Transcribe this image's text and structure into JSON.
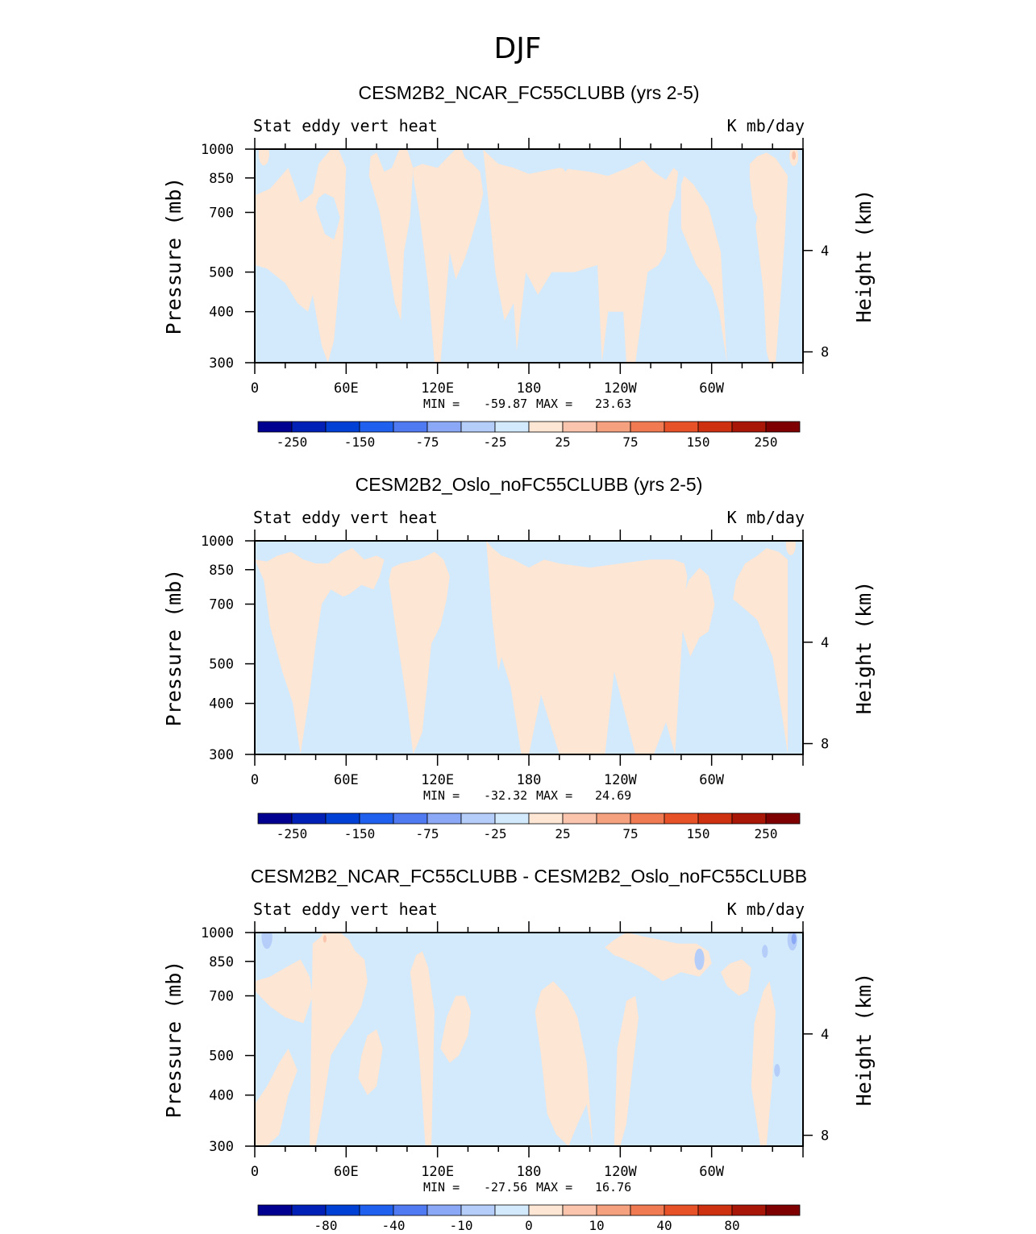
{
  "figure": {
    "title": "DJF"
  },
  "chart_data": [
    {
      "type": "heatmap",
      "title": "CESM2B2_NCAR_FC55CLUBB (yrs 2-5)",
      "left_label": "Stat eddy vert heat",
      "right_label": "K mb/day",
      "ylabel": "Pressure (mb)",
      "ylabel_right": "Height (km)",
      "x_ticks": [
        "0",
        "60E",
        "120E",
        "180",
        "120W",
        "60W"
      ],
      "y_ticks": [
        "300",
        "400",
        "500",
        "700",
        "850",
        "1000"
      ],
      "y_right_ticks": [
        "8",
        "4"
      ],
      "stats": {
        "min_label": "MIN =",
        "min": "-59.87",
        "max_label": "MAX =",
        "max": "23.63"
      },
      "colorbar_labels": [
        "-250",
        "-150",
        "-75",
        "-25",
        "25",
        "75",
        "150",
        "250"
      ],
      "fields": [
        {
          "name": "positive region 1",
          "sign": "positive",
          "lon": [
            0,
            8,
            20,
            28,
            35,
            38,
            44,
            48,
            52,
            58,
            60,
            55,
            50,
            42,
            38,
            30,
            22,
            10,
            0
          ],
          "p": [
            520,
            510,
            470,
            420,
            400,
            440,
            330,
            300,
            340,
            600,
            900,
            1000,
            1000,
            920,
            780,
            740,
            900,
            800,
            770
          ]
        },
        {
          "name": "positive region 2",
          "sign": "positive",
          "lon": [
            75,
            82,
            88,
            92,
            96,
            98,
            102,
            104,
            100,
            95,
            90,
            85,
            80,
            76
          ],
          "p": [
            860,
            700,
            520,
            420,
            380,
            560,
            680,
            900,
            1000,
            1000,
            900,
            880,
            980,
            960
          ]
        },
        {
          "name": "positive region 3",
          "sign": "positive",
          "lon": [
            104,
            108,
            114,
            118,
            122,
            128,
            132,
            138,
            142,
            148,
            150,
            148,
            143,
            138,
            136,
            132,
            126,
            120,
            110,
            104
          ],
          "p": [
            860,
            700,
            460,
            300,
            300,
            560,
            480,
            540,
            600,
            720,
            780,
            880,
            920,
            950,
            1000,
            1000,
            950,
            900,
            920,
            900
          ]
        },
        {
          "name": "positive region 4",
          "sign": "positive",
          "lon": [
            150,
            158,
            164,
            170,
            172,
            178,
            186,
            195,
            210,
            225,
            228,
            232,
            242,
            244,
            250,
            258,
            265,
            270,
            272,
            276,
            278,
            275,
            270,
            262,
            255,
            245,
            232,
            220,
            200,
            180,
            170,
            160,
            152,
            150
          ],
          "p": [
            1000,
            500,
            380,
            420,
            320,
            500,
            440,
            500,
            500,
            520,
            300,
            400,
            400,
            300,
            300,
            500,
            520,
            560,
            700,
            760,
            880,
            900,
            840,
            880,
            940,
            900,
            860,
            880,
            900,
            870,
            900,
            920,
            980,
            1000
          ]
        },
        {
          "name": "positive region 5",
          "sign": "positive",
          "lon": [
            280,
            290,
            300,
            305,
            310,
            306,
            298,
            288,
            282,
            280
          ],
          "p": [
            640,
            520,
            460,
            400,
            300,
            560,
            720,
            820,
            860,
            820
          ]
        },
        {
          "name": "positive region 6",
          "sign": "positive",
          "lon": [
            325,
            330,
            334,
            336,
            338,
            342,
            345,
            348,
            350,
            342,
            336,
            330,
            325
          ],
          "p": [
            850,
            600,
            450,
            320,
            300,
            300,
            420,
            600,
            860,
            950,
            980,
            960,
            920
          ]
        },
        {
          "name": "blue pocket 1",
          "sign": "negative",
          "lon": [
            40,
            46,
            52,
            56,
            52,
            46,
            42
          ],
          "p": [
            720,
            620,
            600,
            680,
            760,
            780,
            760
          ]
        },
        {
          "name": "blue pocket 2",
          "sign": "negative",
          "lon": [
            322,
            327,
            330,
            326,
            322
          ],
          "p": [
            640,
            600,
            680,
            740,
            720
          ]
        },
        {
          "name": "blue pocket 3",
          "sign": "negative",
          "lon": [
            200,
            204,
            208,
            204,
            200
          ],
          "p": [
            920,
            880,
            920,
            960,
            950
          ]
        }
      ],
      "spots": [
        {
          "lon": 354,
          "p": 960,
          "dlon": 1.8,
          "level": 1
        },
        {
          "lon": 354,
          "p": 965,
          "dlon": 0.8,
          "level": 2
        },
        {
          "lon": 6,
          "p": 975,
          "dlon": 2.2,
          "level": 1
        }
      ]
    },
    {
      "type": "heatmap",
      "title": "CESM2B2_Oslo_noFC55CLUBB (yrs 2-5)",
      "left_label": "Stat eddy vert heat",
      "right_label": "K mb/day",
      "ylabel": "Pressure (mb)",
      "ylabel_right": "Height (km)",
      "x_ticks": [
        "0",
        "60E",
        "120E",
        "180",
        "120W",
        "60W"
      ],
      "y_ticks": [
        "300",
        "400",
        "500",
        "700",
        "850",
        "1000"
      ],
      "y_right_ticks": [
        "8",
        "4"
      ],
      "stats": {
        "min_label": "MIN =",
        "min": "-32.32",
        "max_label": "MAX =",
        "max": "24.69"
      },
      "colorbar_labels": [
        "-250",
        "-150",
        "-75",
        "-25",
        "25",
        "75",
        "150",
        "250"
      ],
      "fields": [
        {
          "name": "positive region 1",
          "sign": "positive",
          "lon": [
            0,
            6,
            10,
            18,
            25,
            30,
            36,
            40,
            44,
            50,
            58,
            62,
            70,
            78,
            82,
            85,
            80,
            72,
            64,
            56,
            48,
            40,
            32,
            24,
            15,
            8,
            0
          ],
          "p": [
            900,
            800,
            620,
            480,
            400,
            300,
            420,
            560,
            700,
            760,
            730,
            740,
            780,
            760,
            820,
            900,
            920,
            900,
            960,
            930,
            880,
            880,
            900,
            940,
            920,
            890,
            900
          ]
        },
        {
          "name": "positive region 2",
          "sign": "positive",
          "lon": [
            88,
            94,
            100,
            104,
            110,
            116,
            122,
            126,
            128,
            124,
            118,
            108,
            96,
            90
          ],
          "p": [
            800,
            560,
            400,
            300,
            340,
            560,
            620,
            720,
            820,
            900,
            940,
            900,
            880,
            860
          ]
        },
        {
          "name": "positive region 3",
          "sign": "positive",
          "lon": [
            152,
            156,
            160,
            162,
            168,
            175,
            180,
            188,
            200,
            210,
            230,
            236,
            250,
            262,
            270,
            276,
            282,
            284,
            282,
            275,
            260,
            240,
            220,
            200,
            190,
            180,
            170,
            162,
            156,
            152
          ],
          "p": [
            1000,
            640,
            480,
            520,
            440,
            300,
            300,
            420,
            300,
            300,
            300,
            480,
            300,
            300,
            360,
            300,
            700,
            820,
            880,
            900,
            900,
            880,
            860,
            880,
            900,
            860,
            900,
            920,
            960,
            1000
          ]
        },
        {
          "name": "positive region 4",
          "sign": "positive",
          "lon": [
            280,
            286,
            292,
            298,
            302,
            298,
            292,
            285,
            280
          ],
          "p": [
            620,
            520,
            580,
            600,
            700,
            820,
            860,
            800,
            700
          ]
        },
        {
          "name": "positive region 5",
          "sign": "positive",
          "lon": [
            314,
            322,
            330,
            340,
            346,
            350,
            350,
            344,
            336,
            330,
            322,
            316
          ],
          "p": [
            720,
            680,
            640,
            520,
            380,
            300,
            900,
            940,
            960,
            920,
            880,
            800
          ]
        },
        {
          "name": "blue pocket 1",
          "sign": "negative",
          "lon": [
            45,
            50,
            54,
            50,
            46
          ],
          "p": [
            620,
            600,
            680,
            740,
            700
          ]
        },
        {
          "name": "blue pocket 2",
          "sign": "negative",
          "lon": [
            126,
            130,
            132,
            128
          ],
          "p": [
            720,
            700,
            760,
            780
          ]
        }
      ],
      "spots": [
        {
          "lon": 352,
          "p": 980,
          "dlon": 2.0,
          "level": 1
        }
      ]
    },
    {
      "type": "heatmap",
      "title": "CESM2B2_NCAR_FC55CLUBB - CESM2B2_Oslo_noFC55CLUBB",
      "left_label": "Stat eddy vert heat",
      "right_label": "K mb/day",
      "ylabel": "Pressure (mb)",
      "ylabel_right": "Height (km)",
      "x_ticks": [
        "0",
        "60E",
        "120E",
        "180",
        "120W",
        "60W"
      ],
      "y_ticks": [
        "300",
        "400",
        "500",
        "700",
        "850",
        "1000"
      ],
      "y_right_ticks": [
        "8",
        "4"
      ],
      "stats": {
        "min_label": "MIN =",
        "min": "-27.56",
        "max_label": "MAX =",
        "max": "16.76"
      },
      "colorbar_labels": [
        "-80",
        "-40",
        "-10",
        "0",
        "10",
        "40",
        "80"
      ],
      "fields": [
        {
          "name": "positive region 1",
          "sign": "positive",
          "lon": [
            0,
            10,
            20,
            32,
            38,
            36,
            30,
            20,
            10,
            0
          ],
          "p": [
            720,
            660,
            620,
            600,
            700,
            780,
            860,
            820,
            780,
            760
          ]
        },
        {
          "name": "positive region 2",
          "sign": "positive",
          "lon": [
            36,
            40,
            44,
            50,
            58,
            64,
            70,
            74,
            72,
            66,
            62,
            56,
            50,
            44,
            38
          ],
          "p": [
            300,
            300,
            360,
            500,
            560,
            600,
            660,
            760,
            860,
            900,
            960,
            1000,
            1000,
            980,
            940
          ]
        },
        {
          "name": "positive region 3",
          "sign": "positive",
          "lon": [
            0,
            8,
            16,
            22,
            28,
            22,
            16,
            8,
            0
          ],
          "p": [
            300,
            300,
            320,
            400,
            460,
            520,
            480,
            420,
            380
          ]
        },
        {
          "name": "positive region 4",
          "sign": "positive",
          "lon": [
            68,
            74,
            80,
            84,
            80,
            74,
            70
          ],
          "p": [
            440,
            400,
            420,
            520,
            580,
            560,
            500
          ]
        },
        {
          "name": "positive region 5",
          "sign": "positive",
          "lon": [
            104,
            108,
            112,
            116,
            118,
            114,
            110,
            106,
            102
          ],
          "p": [
            700,
            500,
            300,
            300,
            640,
            820,
            900,
            880,
            800
          ]
        },
        {
          "name": "positive region 6",
          "sign": "positive",
          "lon": [
            122,
            128,
            134,
            140,
            142,
            138,
            132,
            126
          ],
          "p": [
            520,
            480,
            500,
            560,
            640,
            700,
            700,
            620
          ]
        },
        {
          "name": "positive region 7",
          "sign": "positive",
          "lon": [
            184,
            188,
            192,
            198,
            206,
            212,
            218,
            222,
            218,
            212,
            205,
            196,
            188
          ],
          "p": [
            640,
            500,
            360,
            320,
            300,
            340,
            380,
            300,
            480,
            620,
            700,
            760,
            720
          ]
        },
        {
          "name": "positive region 8",
          "sign": "positive",
          "lon": [
            236,
            240,
            244,
            248,
            252,
            250,
            244,
            238
          ],
          "p": [
            300,
            300,
            340,
            460,
            620,
            700,
            680,
            520
          ]
        },
        {
          "name": "positive region 9",
          "sign": "positive",
          "lon": [
            240,
            255,
            268,
            280,
            292,
            300,
            298,
            290,
            278,
            266,
            254,
            244,
            236,
            230,
            236
          ],
          "p": [
            870,
            820,
            760,
            800,
            780,
            840,
            900,
            940,
            940,
            960,
            980,
            1000,
            960,
            920,
            880
          ]
        },
        {
          "name": "positive region 10",
          "sign": "positive",
          "lon": [
            326,
            332,
            336,
            340,
            342,
            338,
            334,
            328
          ],
          "p": [
            420,
            300,
            300,
            440,
            640,
            760,
            720,
            600
          ]
        },
        {
          "name": "positive region 11",
          "sign": "positive",
          "lon": [
            310,
            318,
            324,
            326,
            320,
            312,
            306
          ],
          "p": [
            740,
            700,
            720,
            820,
            860,
            840,
            800
          ]
        }
      ],
      "spots": [
        {
          "lon": 46,
          "p": 960,
          "dlon": 1.5,
          "level": 1
        },
        {
          "lon": 46,
          "p": 965,
          "dlon": 0.7,
          "level": 2
        },
        {
          "lon": 262,
          "p": 890,
          "dlon": 2.5,
          "level": 1
        },
        {
          "lon": 353,
          "p": 960,
          "dlon": 2.0,
          "level": -2
        },
        {
          "lon": 354,
          "p": 965,
          "dlon": 1.0,
          "level": -3
        },
        {
          "lon": 343,
          "p": 460,
          "dlon": 1.2,
          "level": -2
        },
        {
          "lon": 292,
          "p": 860,
          "dlon": 2.0,
          "level": -2
        },
        {
          "lon": 335,
          "p": 900,
          "dlon": 1.2,
          "level": -2
        },
        {
          "lon": 8,
          "p": 975,
          "dlon": 2.2,
          "level": -2
        }
      ]
    }
  ],
  "colors": {
    "neg_low": "#d3e9fc",
    "pos_low": "#fde6d3",
    "frame": "#000000",
    "palette": [
      "#000090",
      "#0020b6",
      "#0040d4",
      "#2060ee",
      "#4f7af1",
      "#8aa8f5",
      "#b5cdf9",
      "#d3e9fc",
      "#fde6d3",
      "#fbc5ad",
      "#f5a07e",
      "#f07a52",
      "#e85228",
      "#cd3110",
      "#a81608",
      "#7e0000"
    ]
  }
}
